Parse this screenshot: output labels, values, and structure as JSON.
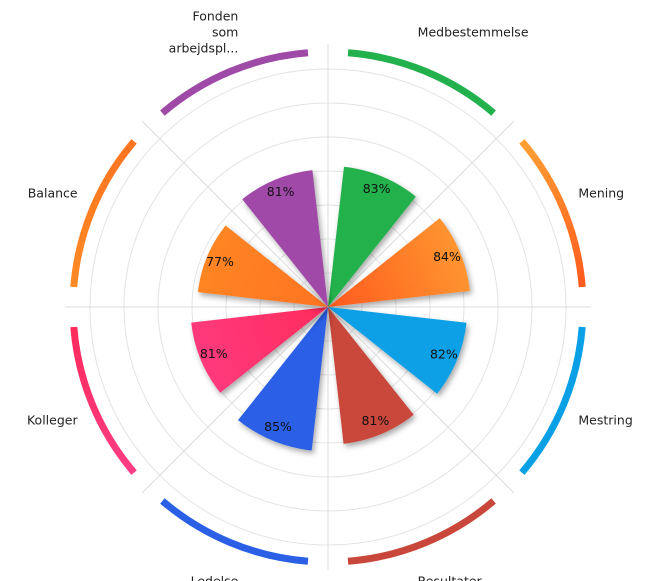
{
  "chart_data": {
    "type": "polar-bar",
    "title": "",
    "value_suffix": "%",
    "rmax": 100,
    "grid": true,
    "categories": [
      {
        "lines": [
          "Medbestemmelse"
        ],
        "value": 83,
        "color": "#22b14c",
        "color2": "#22b14c"
      },
      {
        "lines": [
          "Mening"
        ],
        "value": 84,
        "color": "#ffa033",
        "color2": "#ff5a1e"
      },
      {
        "lines": [
          "Mestring"
        ],
        "value": 82,
        "color": "#0aa0e6",
        "color2": "#0aa0e6"
      },
      {
        "lines": [
          "Resultater"
        ],
        "value": 81,
        "color": "#c9473a",
        "color2": "#c9473a"
      },
      {
        "lines": [
          "Ledelse"
        ],
        "value": 85,
        "color": "#2b5fe6",
        "color2": "#2b5fe6"
      },
      {
        "lines": [
          "Kolleger"
        ],
        "value": 81,
        "color": "#ff3d85",
        "color2": "#ff2b5c"
      },
      {
        "lines": [
          "Balance"
        ],
        "value": 77,
        "color": "#ff8a25",
        "color2": "#ff7320"
      },
      {
        "lines": [
          "Fonden",
          "som",
          "arbejdspl..."
        ],
        "value": 81,
        "color": "#a04aa8",
        "color2": "#a04aa8"
      }
    ]
  }
}
